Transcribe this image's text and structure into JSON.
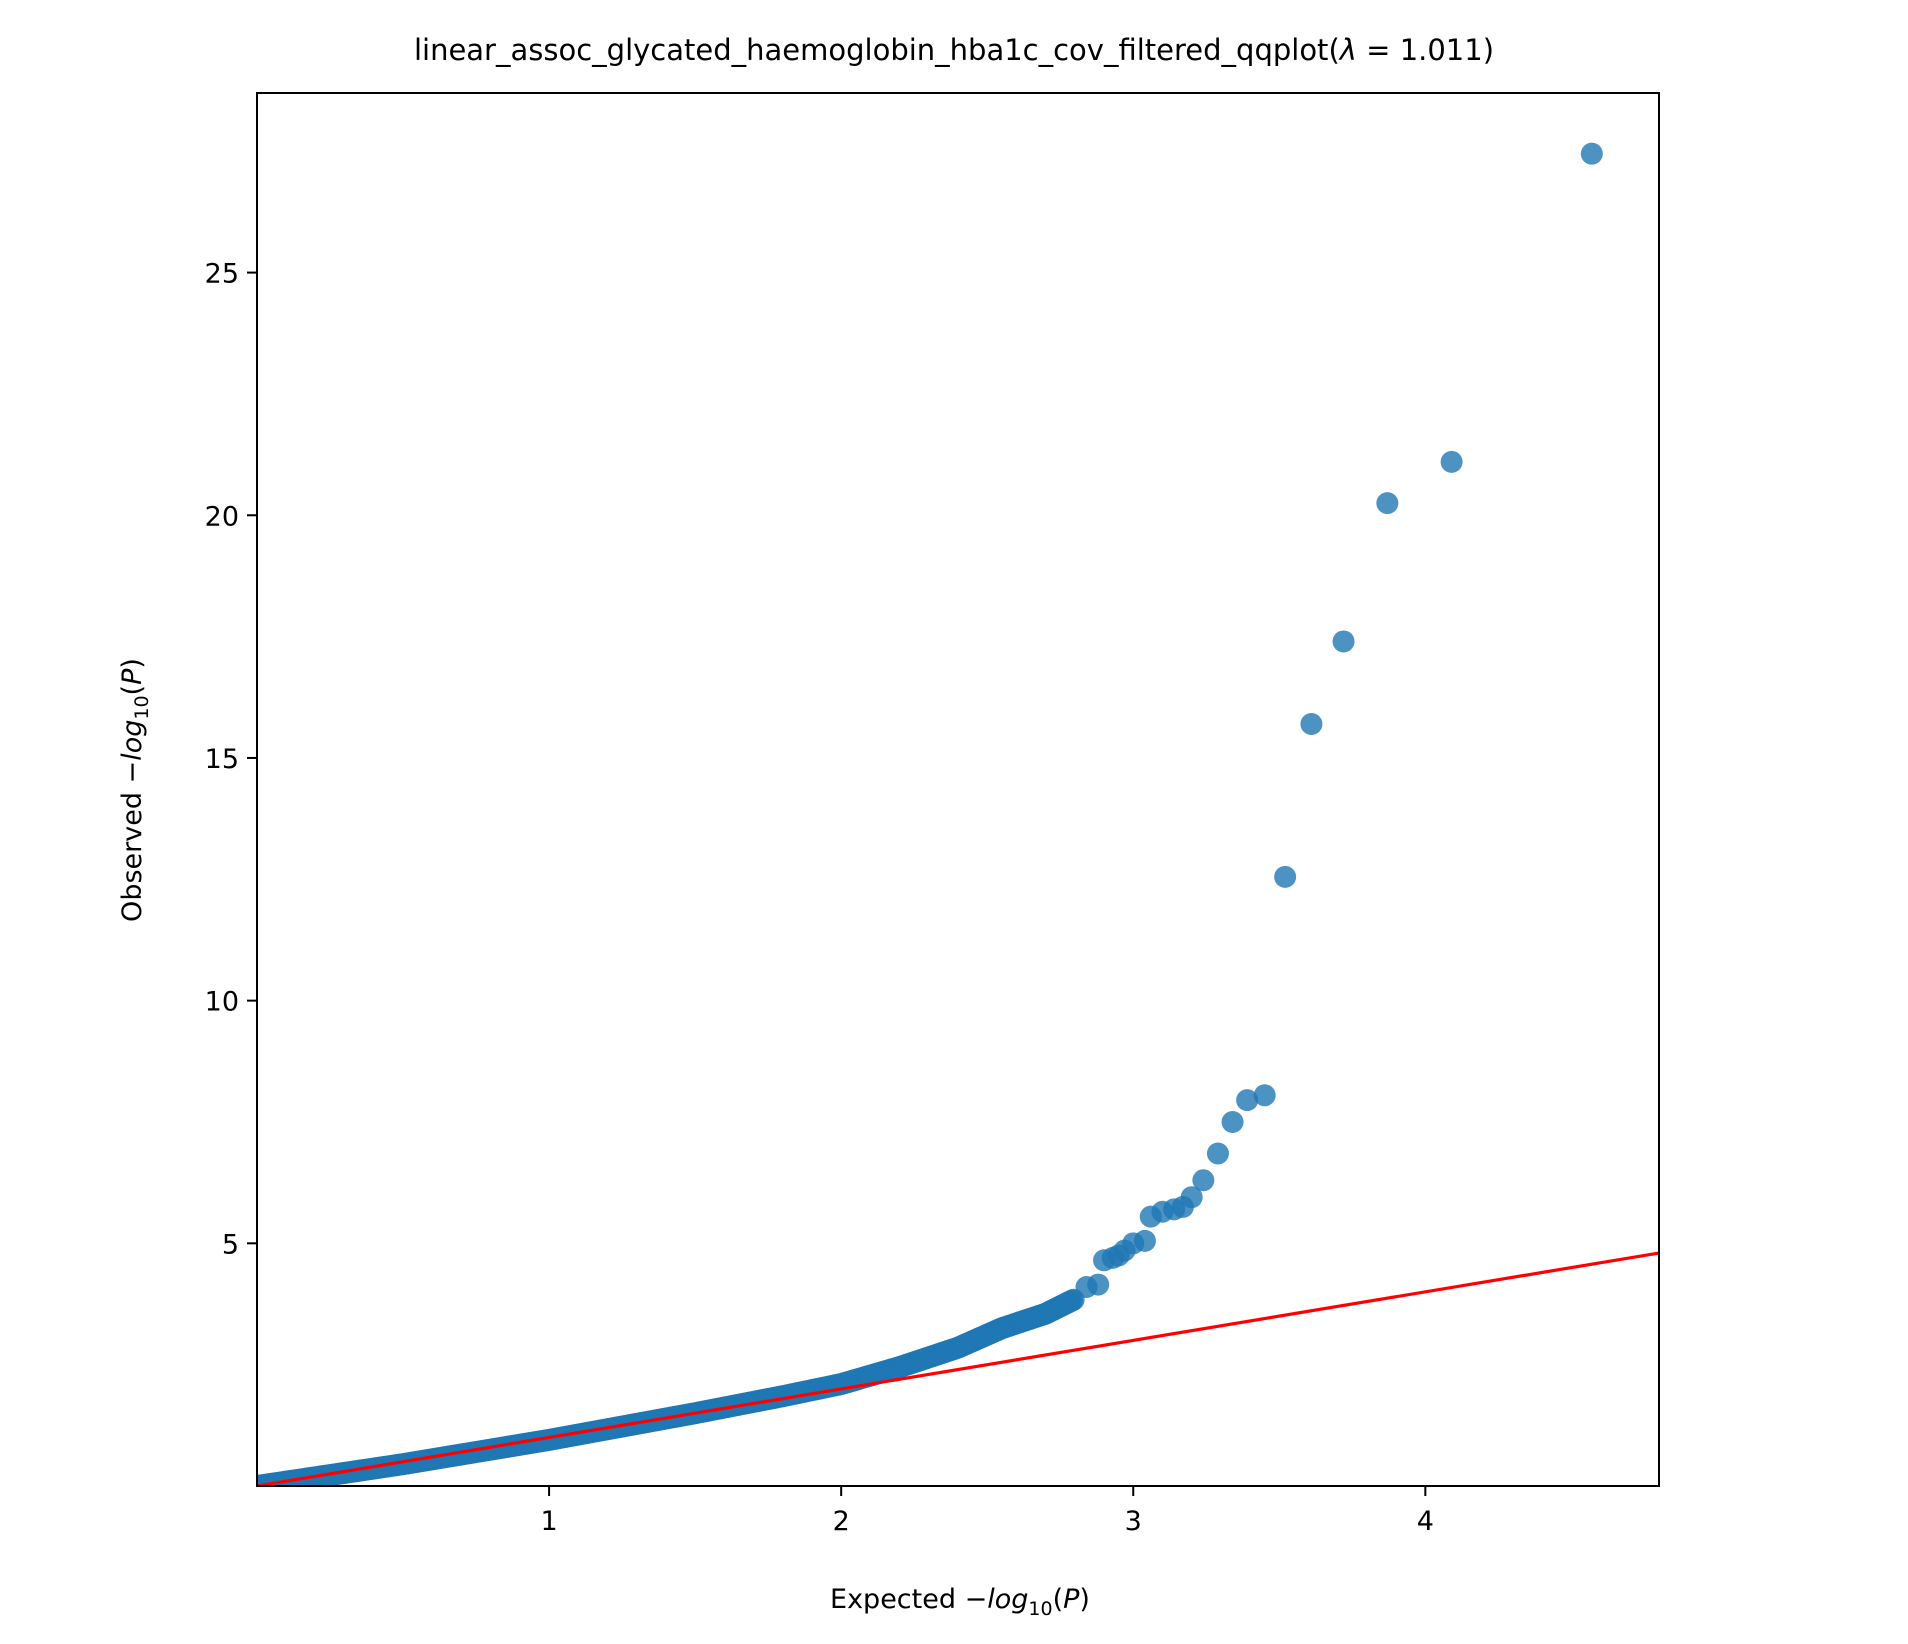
{
  "chart_data": {
    "type": "scatter",
    "title": "linear_assoc_glycated_haemoglobin_hba1c_cov_filtered_qqplot",
    "lambda_text": "1.011",
    "xlabel": "Expected",
    "ylabel": "Observed",
    "log_label": "log",
    "log_sub": "10",
    "p_label": "P",
    "xlim": [
      0.0,
      4.8
    ],
    "ylim": [
      0.0,
      28.7
    ],
    "xticks": [
      1,
      2,
      3,
      4
    ],
    "yticks": [
      5,
      10,
      15,
      20,
      25
    ],
    "grid": false,
    "legend": "none",
    "point_color": "#1f77b4",
    "line_color": "#ff0000",
    "reference_line": {
      "slope": 1,
      "intercept": 0
    },
    "bulk_trend": {
      "x": [
        0.0,
        0.5,
        1.0,
        1.5,
        1.8,
        2.0,
        2.2,
        2.4,
        2.55,
        2.7,
        2.8
      ],
      "y": [
        0.0,
        0.45,
        0.95,
        1.5,
        1.85,
        2.1,
        2.45,
        2.85,
        3.25,
        3.55,
        3.85
      ]
    },
    "points": [
      {
        "x": 2.84,
        "y": 4.1
      },
      {
        "x": 2.88,
        "y": 4.15
      },
      {
        "x": 2.9,
        "y": 4.65
      },
      {
        "x": 2.93,
        "y": 4.7
      },
      {
        "x": 2.95,
        "y": 4.75
      },
      {
        "x": 2.97,
        "y": 4.85
      },
      {
        "x": 3.0,
        "y": 5.0
      },
      {
        "x": 3.04,
        "y": 5.05
      },
      {
        "x": 3.06,
        "y": 5.55
      },
      {
        "x": 3.1,
        "y": 5.65
      },
      {
        "x": 3.14,
        "y": 5.7
      },
      {
        "x": 3.17,
        "y": 5.75
      },
      {
        "x": 3.2,
        "y": 5.95
      },
      {
        "x": 3.24,
        "y": 6.3
      },
      {
        "x": 3.29,
        "y": 6.85
      },
      {
        "x": 3.34,
        "y": 7.5
      },
      {
        "x": 3.39,
        "y": 7.95
      },
      {
        "x": 3.45,
        "y": 8.05
      },
      {
        "x": 3.52,
        "y": 12.55
      },
      {
        "x": 3.61,
        "y": 15.7
      },
      {
        "x": 3.72,
        "y": 17.4
      },
      {
        "x": 3.87,
        "y": 20.25
      },
      {
        "x": 4.09,
        "y": 21.1
      },
      {
        "x": 4.57,
        "y": 27.45
      }
    ]
  }
}
